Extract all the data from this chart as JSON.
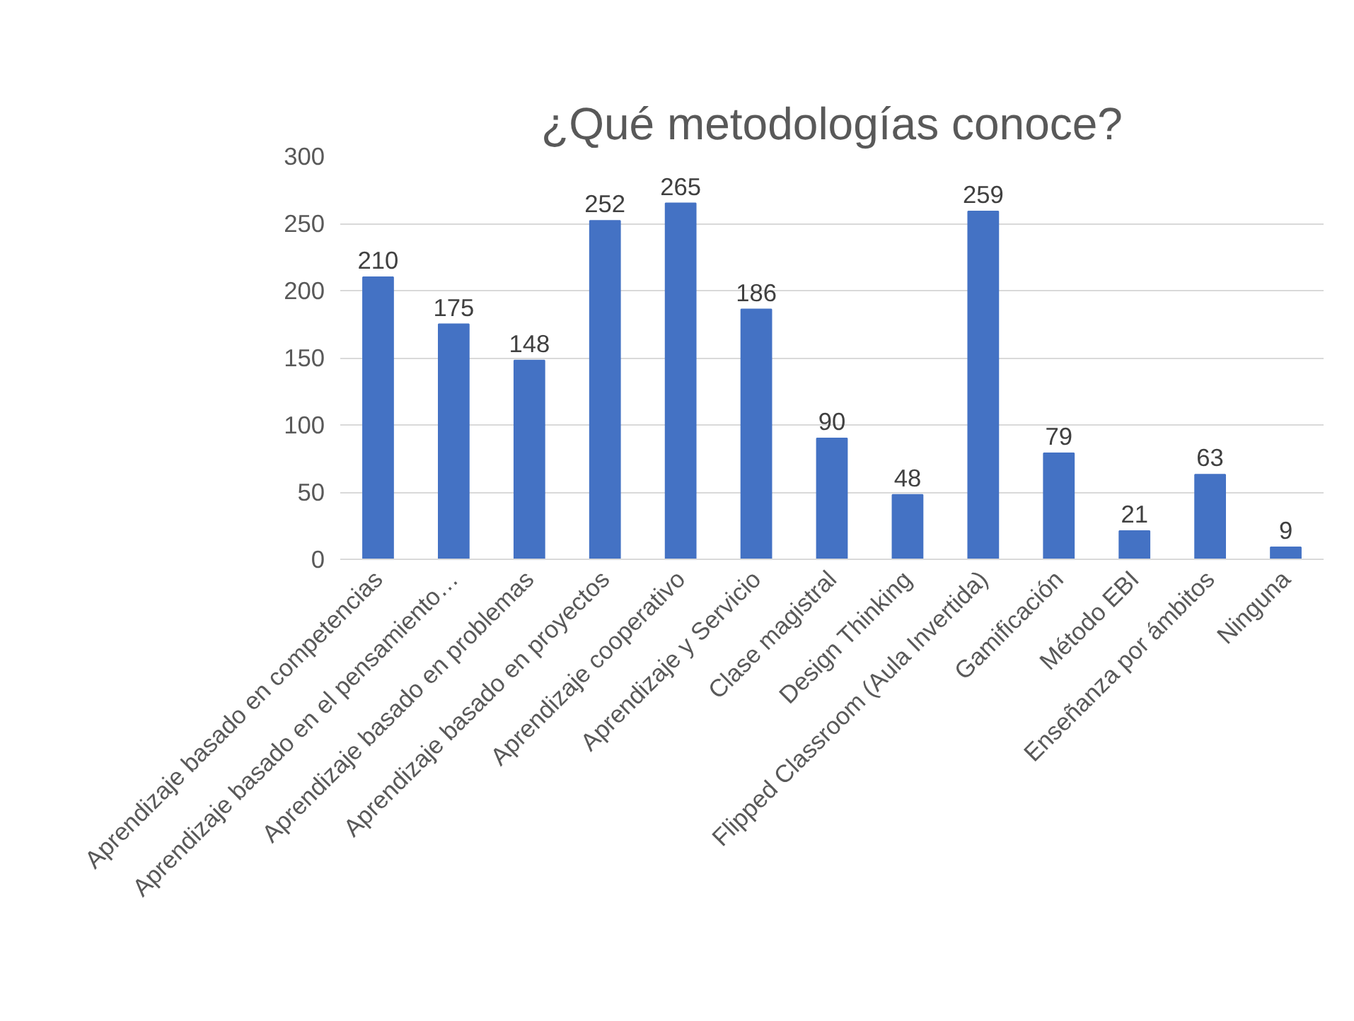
{
  "chart_data": {
    "type": "bar",
    "title": "¿Qué metodologías conoce?",
    "categories": [
      "Aprendizaje basado en competencias",
      "Aprendizaje basado en el pensamiento…",
      "Aprendizaje basado en problemas",
      "Aprendizaje basado en proyectos",
      "Aprendizaje cooperativo",
      "Aprendizaje y Servicio",
      "Clase magistral",
      "Design Thinking",
      "Flipped Classroom (Aula Invertida)",
      "Gamificación",
      "Método EBI",
      "Enseñanza por ámbitos",
      "Ninguna"
    ],
    "values": [
      210,
      175,
      148,
      252,
      265,
      186,
      90,
      48,
      259,
      79,
      21,
      63,
      9
    ],
    "color": "#4472c4",
    "ylim": [
      0,
      300
    ],
    "yticks": [
      0,
      50,
      100,
      150,
      200,
      250,
      300
    ],
    "grid": "y",
    "data_labels": true
  }
}
